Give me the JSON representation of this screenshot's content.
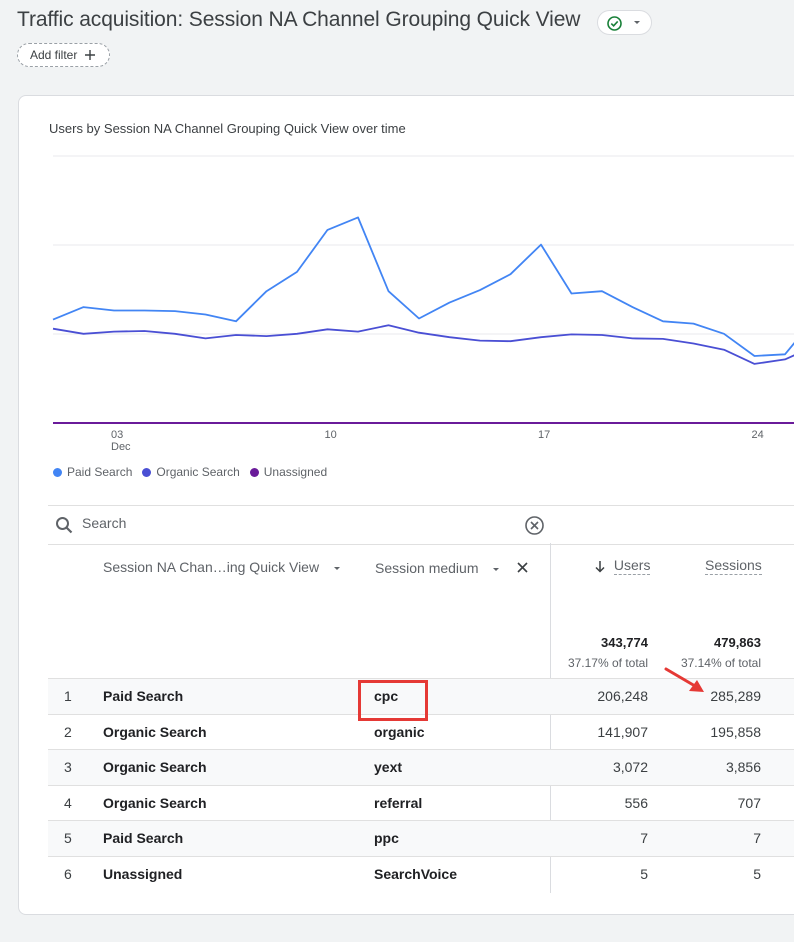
{
  "header": {
    "title": "Traffic acquisition: Session NA Channel Grouping Quick View",
    "add_filter_label": "Add filter"
  },
  "chart": {
    "title": "Users by Session NA Channel Grouping Quick View over time",
    "x_ticks": [
      {
        "label": "03",
        "sub": "Dec"
      },
      {
        "label": "10",
        "sub": ""
      },
      {
        "label": "17",
        "sub": ""
      },
      {
        "label": "24",
        "sub": ""
      }
    ]
  },
  "chart_data": {
    "type": "line",
    "title": "Users by Session NA Channel Grouping Quick View over time",
    "x": [
      1,
      2,
      3,
      4,
      5,
      6,
      7,
      8,
      9,
      10,
      11,
      12,
      13,
      14,
      15,
      16,
      17,
      18,
      19,
      20,
      21,
      22,
      23,
      24,
      25,
      26
    ],
    "x_tick_labels": [
      "03 Dec",
      "10",
      "17",
      "24"
    ],
    "series": [
      {
        "name": "Paid Search",
        "color": "#4285f4",
        "values": [
          9100,
          10200,
          9900,
          9900,
          9850,
          9550,
          8950,
          11600,
          13300,
          17000,
          18100,
          11600,
          9200,
          10600,
          11700,
          13100,
          15700,
          11400,
          11600,
          10200,
          8950,
          8750,
          7850,
          5900,
          6050,
          9300
        ]
      },
      {
        "name": "Organic Search",
        "color": "#4a4fd4",
        "values": [
          8300,
          7850,
          8050,
          8100,
          7850,
          7450,
          7750,
          7650,
          7850,
          8250,
          8050,
          8600,
          7950,
          7550,
          7250,
          7200,
          7550,
          7800,
          7750,
          7450,
          7400,
          7000,
          6450,
          5200,
          5600,
          6800
        ]
      },
      {
        "name": "Unassigned",
        "color": "#6a1b9a",
        "values": [
          0,
          0,
          0,
          0,
          0,
          0,
          0,
          0,
          0,
          0,
          0,
          0,
          0,
          0,
          0,
          0,
          0,
          0,
          0,
          0,
          0,
          0,
          0,
          0,
          0,
          0
        ]
      }
    ],
    "grid": true,
    "legend": "bottom-left"
  },
  "search": {
    "placeholder": "Search"
  },
  "table": {
    "col_channel": "Session NA Chan…ing Quick View",
    "col_medium": "Session medium",
    "col_users": "Users",
    "col_sessions": "Sessions",
    "totals": {
      "users": "343,774",
      "users_pct": "37.17% of total",
      "sessions": "479,863",
      "sessions_pct": "37.14% of total"
    },
    "rows": [
      {
        "idx": "1",
        "channel": "Paid Search",
        "medium": "cpc",
        "users": "206,248",
        "sessions": "285,289"
      },
      {
        "idx": "2",
        "channel": "Organic Search",
        "medium": "organic",
        "users": "141,907",
        "sessions": "195,858"
      },
      {
        "idx": "3",
        "channel": "Organic Search",
        "medium": "yext",
        "users": "3,072",
        "sessions": "3,856"
      },
      {
        "idx": "4",
        "channel": "Organic Search",
        "medium": "referral",
        "users": "556",
        "sessions": "707"
      },
      {
        "idx": "5",
        "channel": "Paid Search",
        "medium": "ppc",
        "users": "7",
        "sessions": "7"
      },
      {
        "idx": "6",
        "channel": "Unassigned",
        "medium": "SearchVoice",
        "users": "5",
        "sessions": "5"
      }
    ]
  },
  "colors": {
    "paid_search": "#4285f4",
    "organic_search": "#4a4fd4",
    "unassigned": "#6a1b9a",
    "status_check": "#188038",
    "annotation": "#e53935"
  }
}
